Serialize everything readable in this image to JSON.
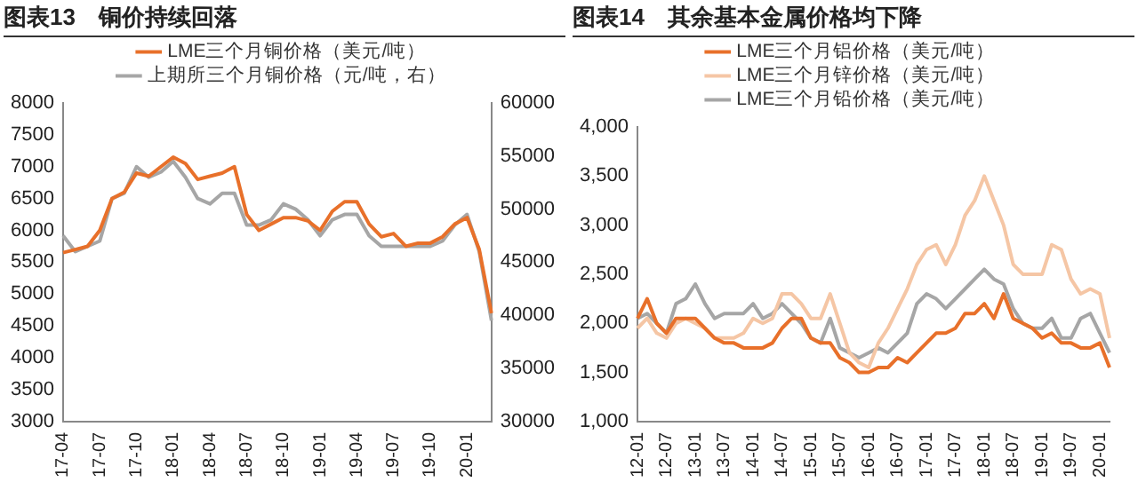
{
  "chart_data": [
    {
      "type": "line",
      "title": "图表13　铜价持续回落",
      "categories": [
        "17-04",
        null,
        null,
        "17-07",
        null,
        null,
        "17-10",
        null,
        null,
        "18-01",
        null,
        null,
        "18-04",
        null,
        null,
        "18-07",
        null,
        null,
        "18-10",
        null,
        null,
        "19-01",
        null,
        null,
        "19-04",
        null,
        null,
        "19-07",
        null,
        null,
        "19-10",
        null,
        null,
        "20-01",
        null,
        null
      ],
      "series": [
        {
          "name": "LME三个月铜价格（美元/吨）",
          "color": "#e8702a",
          "values": [
            5650,
            5700,
            5750,
            6000,
            6500,
            6600,
            6900,
            6850,
            7000,
            7150,
            7050,
            6800,
            6850,
            6900,
            7000,
            6250,
            6000,
            6100,
            6200,
            6200,
            6150,
            6000,
            6300,
            6450,
            6450,
            6100,
            5900,
            5950,
            5750,
            5800,
            5800,
            5900,
            6100,
            6200,
            5700,
            4700
          ]
        },
        {
          "name": "上期所三个月铜价格（元/吨，右）",
          "color": "#a6a6a6",
          "axis": "y2",
          "values": [
            47500,
            46000,
            46500,
            47000,
            51000,
            51500,
            54000,
            53000,
            53500,
            54500,
            53000,
            51000,
            50500,
            51500,
            51500,
            48500,
            48500,
            49000,
            50500,
            50000,
            49000,
            47500,
            49000,
            49500,
            49500,
            47500,
            46500,
            46500,
            46500,
            46500,
            46500,
            47000,
            48500,
            49500,
            46000,
            39500
          ]
        }
      ],
      "ylim": [
        3000,
        8000
      ],
      "yticks": [
        3000,
        3500,
        4000,
        4500,
        5000,
        5500,
        6000,
        6500,
        7000,
        7500,
        8000
      ],
      "y2lim": [
        30000,
        60000
      ],
      "y2ticks": [
        30000,
        35000,
        40000,
        45000,
        50000,
        55000,
        60000
      ],
      "legend": "top",
      "grid": false
    },
    {
      "type": "line",
      "title": "图表14　其余基本金属价格均下降",
      "categories": [
        "12-01",
        null,
        null,
        "12-07",
        null,
        null,
        "13-01",
        null,
        null,
        "13-07",
        null,
        null,
        "14-01",
        null,
        null,
        "14-07",
        null,
        null,
        "15-01",
        null,
        null,
        "15-07",
        null,
        null,
        "16-01",
        null,
        null,
        "16-07",
        null,
        null,
        "17-01",
        null,
        null,
        "17-07",
        null,
        null,
        "18-01",
        null,
        null,
        "18-07",
        null,
        null,
        "19-01",
        null,
        null,
        "19-07",
        null,
        null,
        "20-01",
        null
      ],
      "series": [
        {
          "name": "LME三个月铝价格（美元/吨）",
          "color": "#e8702a",
          "values": [
            2050,
            2250,
            2000,
            1900,
            2050,
            2050,
            2050,
            1950,
            1850,
            1800,
            1800,
            1750,
            1750,
            1750,
            1800,
            1950,
            2050,
            2050,
            1850,
            1800,
            1800,
            1650,
            1600,
            1500,
            1500,
            1550,
            1550,
            1650,
            1600,
            1700,
            1800,
            1900,
            1900,
            1950,
            2100,
            2100,
            2200,
            2050,
            2300,
            2050,
            2000,
            1950,
            1850,
            1900,
            1800,
            1800,
            1750,
            1750,
            1800,
            1550
          ]
        },
        {
          "name": "LME三个月锌价格（美元/吨）",
          "color": "#f5c6a5",
          "values": [
            1950,
            2050,
            1900,
            1850,
            2000,
            2050,
            2000,
            1950,
            1850,
            1850,
            1850,
            1900,
            2050,
            2000,
            2050,
            2300,
            2300,
            2200,
            2050,
            2050,
            2300,
            2000,
            1700,
            1600,
            1550,
            1800,
            1950,
            2150,
            2350,
            2600,
            2750,
            2800,
            2600,
            2800,
            3100,
            3250,
            3500,
            3250,
            3000,
            2600,
            2500,
            2500,
            2500,
            2800,
            2750,
            2450,
            2300,
            2350,
            2300,
            1850
          ]
        },
        {
          "name": "LME三个月铅价格（美元/吨）",
          "color": "#a6a6a6",
          "values": [
            2050,
            2100,
            2000,
            1900,
            2200,
            2250,
            2400,
            2200,
            2050,
            2100,
            2100,
            2100,
            2200,
            2050,
            2100,
            2200,
            2100,
            2000,
            1850,
            1800,
            2050,
            1750,
            1700,
            1650,
            1700,
            1750,
            1700,
            1800,
            1900,
            2200,
            2300,
            2250,
            2150,
            2250,
            2350,
            2450,
            2550,
            2450,
            2400,
            2150,
            2000,
            1950,
            1950,
            2050,
            1850,
            1850,
            2050,
            2100,
            1900,
            1700
          ]
        }
      ],
      "ylim": [
        1000,
        4000
      ],
      "yticks": [
        {
          "value": 1000,
          "label": "1,000"
        },
        {
          "value": 1500,
          "label": "1,500"
        },
        {
          "value": 2000,
          "label": "2,000"
        },
        {
          "value": 2500,
          "label": "2,500"
        },
        {
          "value": 3000,
          "label": "3,000"
        },
        {
          "value": 3500,
          "label": "3,500"
        },
        {
          "value": 4000,
          "label": "4,000"
        }
      ],
      "legend": "top",
      "grid": false
    }
  ]
}
